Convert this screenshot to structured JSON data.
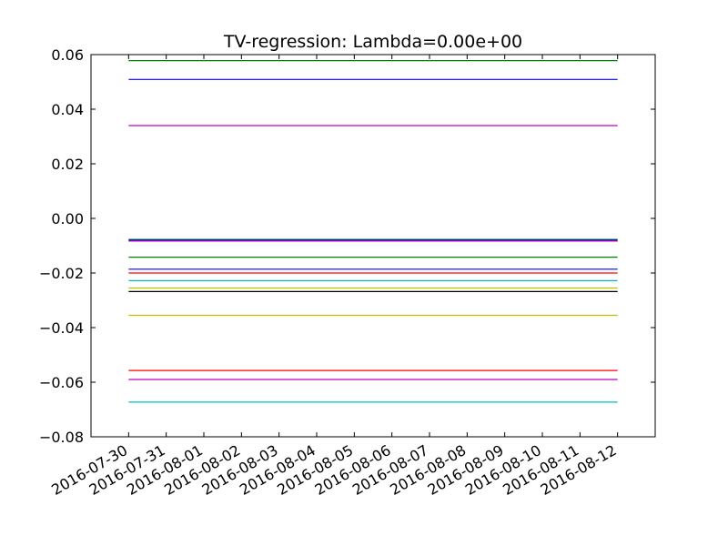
{
  "chart_data": {
    "type": "line",
    "title": "TV-regression: Lambda=0.00e+00",
    "xlabel": "",
    "ylabel": "",
    "ylim": [
      -0.08,
      0.06
    ],
    "xlim": [
      "2016-07-29",
      "2016-08-13"
    ],
    "grid": false,
    "y_ticks": [
      "0.06",
      "0.04",
      "0.02",
      "0.00",
      "−0.02",
      "−0.04",
      "−0.06",
      "−0.08"
    ],
    "y_tick_values": [
      0.06,
      0.04,
      0.02,
      0.0,
      -0.02,
      -0.04,
      -0.06,
      -0.08
    ],
    "x": [
      "2016-07-30",
      "2016-07-31",
      "2016-08-01",
      "2016-08-02",
      "2016-08-03",
      "2016-08-04",
      "2016-08-05",
      "2016-08-06",
      "2016-08-07",
      "2016-08-08",
      "2016-08-09",
      "2016-08-10",
      "2016-08-11",
      "2016-08-12"
    ],
    "series": [
      {
        "color": "#008000",
        "value": 0.0578
      },
      {
        "color": "#0000ff",
        "value": 0.0509
      },
      {
        "color": "#bf00bf",
        "value": 0.034
      },
      {
        "color": "#008000",
        "value": -0.0077
      },
      {
        "color": "#0000ff",
        "value": -0.008
      },
      {
        "color": "#bf00bf",
        "value": -0.0083
      },
      {
        "color": "#008000",
        "value": -0.0142
      },
      {
        "color": "#0000ff",
        "value": -0.0186
      },
      {
        "color": "#ff0000",
        "value": -0.02
      },
      {
        "color": "#00bfbf",
        "value": -0.0228
      },
      {
        "color": "#bfbf00",
        "value": -0.0255
      },
      {
        "color": "#000000",
        "value": -0.0268
      },
      {
        "color": "#bfbf00",
        "value": -0.0355
      },
      {
        "color": "#ff0000",
        "value": -0.0557
      },
      {
        "color": "#bf00bf",
        "value": -0.059
      },
      {
        "color": "#00bfbf",
        "value": -0.0673
      }
    ]
  }
}
